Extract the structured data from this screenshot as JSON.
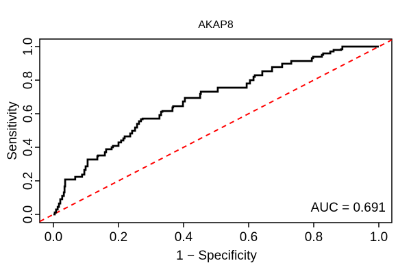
{
  "figure": {
    "title": "AKAP8",
    "auc_label": "AUC = 0.691",
    "background": "#ffffff"
  },
  "chart_data": {
    "type": "line",
    "subtype": "roc-curve",
    "title": "AKAP8",
    "xlabel": "1 − Specificity",
    "ylabel": "Sensitivity",
    "xlim": [
      0.0,
      1.0
    ],
    "ylim": [
      0.0,
      1.0
    ],
    "x_ticks": [
      0.0,
      0.2,
      0.4,
      0.6,
      0.8,
      1.0
    ],
    "y_ticks": [
      0.0,
      0.2,
      0.4,
      0.6,
      0.8,
      1.0
    ],
    "grid": false,
    "legend": false,
    "auc": 0.691,
    "annotations": [
      {
        "text": "AUC = 0.691",
        "position": "bottom-right-inside"
      }
    ],
    "series": [
      {
        "name": "ROC curve",
        "color": "#000000",
        "line_width": 2.7,
        "style": "step",
        "points": [
          [
            0,
            0
          ],
          [
            0.004,
            0.012
          ],
          [
            0.008,
            0.029
          ],
          [
            0.013,
            0.045
          ],
          [
            0.017,
            0.065
          ],
          [
            0.021,
            0.09
          ],
          [
            0.027,
            0.11
          ],
          [
            0.032,
            0.131
          ],
          [
            0.034,
            0.167
          ],
          [
            0.036,
            0.208
          ],
          [
            0.067,
            0.208
          ],
          [
            0.067,
            0.224
          ],
          [
            0.084,
            0.224
          ],
          [
            0.088,
            0.237
          ],
          [
            0.095,
            0.265
          ],
          [
            0.099,
            0.286
          ],
          [
            0.105,
            0.306
          ],
          [
            0.105,
            0.327
          ],
          [
            0.131,
            0.327
          ],
          [
            0.135,
            0.347
          ],
          [
            0.137,
            0.351
          ],
          [
            0.152,
            0.351
          ],
          [
            0.158,
            0.371
          ],
          [
            0.162,
            0.388
          ],
          [
            0.177,
            0.388
          ],
          [
            0.179,
            0.4
          ],
          [
            0.183,
            0.408
          ],
          [
            0.198,
            0.408
          ],
          [
            0.2,
            0.429
          ],
          [
            0.208,
            0.441
          ],
          [
            0.215,
            0.453
          ],
          [
            0.219,
            0.465
          ],
          [
            0.232,
            0.465
          ],
          [
            0.236,
            0.482
          ],
          [
            0.242,
            0.498
          ],
          [
            0.251,
            0.518
          ],
          [
            0.257,
            0.539
          ],
          [
            0.263,
            0.555
          ],
          [
            0.269,
            0.567
          ],
          [
            0.274,
            0.571
          ],
          [
            0.324,
            0.571
          ],
          [
            0.326,
            0.592
          ],
          [
            0.331,
            0.612
          ],
          [
            0.335,
            0.616
          ],
          [
            0.362,
            0.616
          ],
          [
            0.366,
            0.637
          ],
          [
            0.368,
            0.645
          ],
          [
            0.394,
            0.645
          ],
          [
            0.398,
            0.673
          ],
          [
            0.404,
            0.694
          ],
          [
            0.446,
            0.694
          ],
          [
            0.451,
            0.718
          ],
          [
            0.453,
            0.731
          ],
          [
            0.503,
            0.731
          ],
          [
            0.505,
            0.755
          ],
          [
            0.589,
            0.755
          ],
          [
            0.594,
            0.78
          ],
          [
            0.604,
            0.8
          ],
          [
            0.615,
            0.82
          ],
          [
            0.619,
            0.829
          ],
          [
            0.638,
            0.829
          ],
          [
            0.642,
            0.853
          ],
          [
            0.667,
            0.853
          ],
          [
            0.672,
            0.878
          ],
          [
            0.699,
            0.878
          ],
          [
            0.703,
            0.898
          ],
          [
            0.726,
            0.898
          ],
          [
            0.731,
            0.914
          ],
          [
            0.787,
            0.914
          ],
          [
            0.794,
            0.931
          ],
          [
            0.798,
            0.939
          ],
          [
            0.821,
            0.939
          ],
          [
            0.825,
            0.951
          ],
          [
            0.829,
            0.959
          ],
          [
            0.846,
            0.959
          ],
          [
            0.851,
            0.971
          ],
          [
            0.861,
            0.98
          ],
          [
            0.884,
            0.984
          ],
          [
            0.888,
            1
          ],
          [
            1,
            1
          ]
        ]
      }
    ],
    "reference_line": {
      "name": "chance diagonal",
      "from": [
        0,
        0
      ],
      "to": [
        1,
        1
      ],
      "color": "#FF0000",
      "style": "dashed",
      "line_width": 2
    }
  }
}
